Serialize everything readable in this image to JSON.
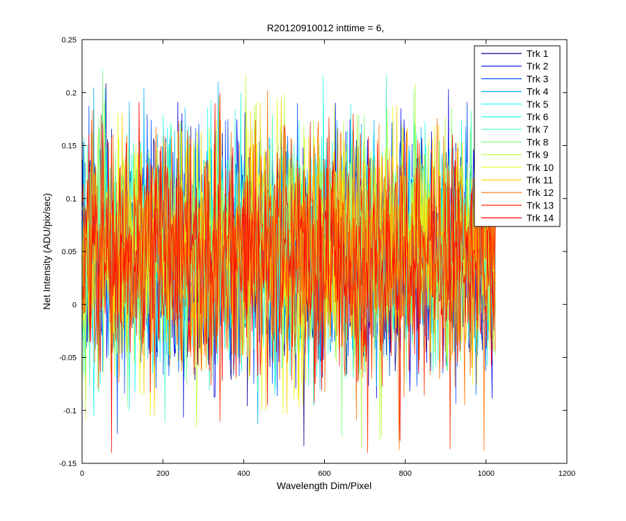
{
  "chart_data": {
    "type": "line",
    "title": "R20120910012 inttime = 6,",
    "xlabel": "Wavelength Dim/Pixel",
    "ylabel": "Net Intensity (ADU/pix/sec)",
    "xlim": [
      0,
      1200
    ],
    "ylim": [
      -0.15,
      0.25
    ],
    "x_ticks": [
      0,
      200,
      400,
      600,
      800,
      1000,
      1200
    ],
    "x_tick_labels": [
      "0",
      "200",
      "400",
      "600",
      "800",
      "1000",
      "1200"
    ],
    "y_ticks": [
      -0.15,
      -0.1,
      -0.05,
      0,
      0.05,
      0.1,
      0.15,
      0.2,
      0.25
    ],
    "y_tick_labels": [
      "-0.15",
      "-0.1",
      "-0.05",
      "0",
      "0.05",
      "0.1",
      "0.15",
      "0.2",
      "0.25"
    ],
    "grid": false,
    "legend_position": "top-right",
    "x_range": [
      1,
      1024
    ],
    "series": [
      {
        "name": "Trk 1",
        "color": "#00008F",
        "mean": 0.045,
        "spread": 0.055
      },
      {
        "name": "Trk 2",
        "color": "#0000EF",
        "mean": 0.045,
        "spread": 0.055
      },
      {
        "name": "Trk 3",
        "color": "#0050FF",
        "mean": 0.045,
        "spread": 0.055
      },
      {
        "name": "Trk 4",
        "color": "#00AFFF",
        "mean": 0.05,
        "spread": 0.055
      },
      {
        "name": "Trk 5",
        "color": "#10FFEF",
        "mean": 0.05,
        "spread": 0.055
      },
      {
        "name": "Trk 6",
        "color": "#20FFDF",
        "mean": 0.05,
        "spread": 0.055
      },
      {
        "name": "Trk 7",
        "color": "#40FFBF",
        "mean": 0.05,
        "spread": 0.055
      },
      {
        "name": "Trk 8",
        "color": "#80FF80",
        "mean": 0.05,
        "spread": 0.055
      },
      {
        "name": "Trk 9",
        "color": "#BFFF40",
        "mean": 0.05,
        "spread": 0.055
      },
      {
        "name": "Trk 10",
        "color": "#EFFF10",
        "mean": 0.05,
        "spread": 0.055
      },
      {
        "name": "Trk 11",
        "color": "#FFCF00",
        "mean": 0.05,
        "spread": 0.055
      },
      {
        "name": "Trk 12",
        "color": "#FF7000",
        "mean": 0.05,
        "spread": 0.055
      },
      {
        "name": "Trk 13",
        "color": "#FF3000",
        "mean": 0.05,
        "spread": 0.055
      },
      {
        "name": "Trk 14",
        "color": "#FF0000",
        "mean": 0.05,
        "spread": 0.055
      }
    ]
  }
}
